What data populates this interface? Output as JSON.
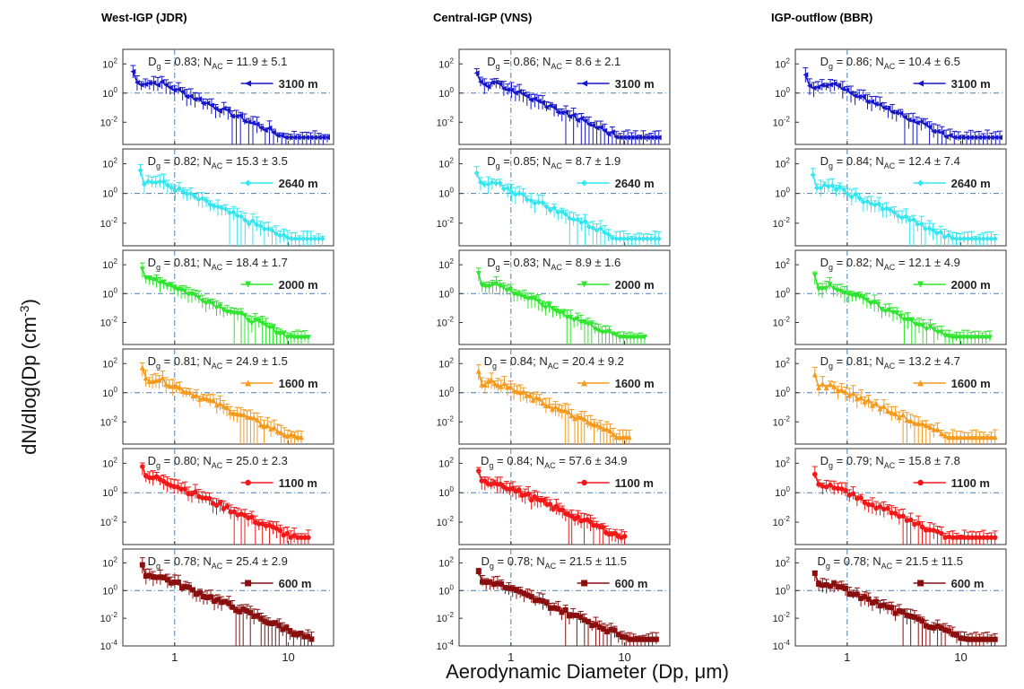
{
  "chart_data": {
    "type": "scatter",
    "layout": "grid 6 rows x 3 columns of log-log size distribution panels",
    "columns": [
      {
        "title": "West-IGP (JDR)",
        "xlim": [
          0.35,
          25
        ],
        "xticks": [
          "1",
          "10"
        ],
        "xtick_values": [
          1,
          10
        ]
      },
      {
        "title": "Central-IGP (VNS)",
        "xlim": [
          0.35,
          25
        ],
        "xticks": [
          "1",
          "10"
        ],
        "xtick_values": [
          1,
          10
        ]
      },
      {
        "title": "IGP-outflow (BBR)",
        "xlim": [
          0.35,
          25
        ],
        "xticks": [
          "1",
          "10"
        ],
        "xtick_values": [
          1,
          10
        ]
      }
    ],
    "rows": [
      {
        "altitude": "3100 m",
        "color": "#1616c8",
        "marker": "triangle-left"
      },
      {
        "altitude": "2640 m",
        "color": "#33e6f0",
        "marker": "diamond"
      },
      {
        "altitude": "2000 m",
        "color": "#2ee62e",
        "marker": "triangle-down"
      },
      {
        "altitude": "1600 m",
        "color": "#f59a1e",
        "marker": "triangle-up"
      },
      {
        "altitude": "1100 m",
        "color": "#f01818",
        "marker": "circle"
      },
      {
        "altitude": "600 m",
        "color": "#8b0e0e",
        "marker": "square"
      }
    ],
    "ylim_upper_rows": [
      0.0003,
      1000
    ],
    "ylim_bottom_row": [
      0.0001,
      1000
    ],
    "yticks_upper": [
      {
        "base": "10",
        "exp": "2"
      },
      {
        "base": "10",
        "exp": "0"
      },
      {
        "base": "10",
        "exp": "-2"
      }
    ],
    "yticks_bottom": [
      {
        "base": "10",
        "exp": "2"
      },
      {
        "base": "10",
        "exp": "0"
      },
      {
        "base": "10",
        "exp": "-2"
      },
      {
        "base": "10",
        "exp": "-4"
      }
    ],
    "reference_lines": {
      "x": 1,
      "y": 1
    },
    "panels": [
      [
        {
          "dg_text": "0.83",
          "nac_text": "11.9 ± 5.1",
          "peak": 5,
          "x_start": 0.43,
          "x_end": 22,
          "dg": 0.83
        },
        {
          "dg_text": "0.82",
          "nac_text": "15.3 ± 3.5",
          "peak": 6,
          "x_start": 0.5,
          "x_end": 20,
          "dg": 0.82
        },
        {
          "dg_text": "0.81",
          "nac_text": "18.4 ± 1.7",
          "peak": 8,
          "x_start": 0.52,
          "x_end": 15,
          "dg": 0.81
        },
        {
          "dg_text": "0.81",
          "nac_text": "24.9 ± 1.5",
          "peak": 9,
          "x_start": 0.52,
          "x_end": 13,
          "dg": 0.81
        },
        {
          "dg_text": "0.80",
          "nac_text": "25.0 ± 2.3",
          "peak": 10,
          "x_start": 0.52,
          "x_end": 15,
          "dg": 0.8
        },
        {
          "dg_text": "0.78",
          "nac_text": "25.4 ± 2.9",
          "peak": 12,
          "x_start": 0.52,
          "x_end": 16,
          "dg": 0.78
        }
      ],
      [
        {
          "dg_text": "0.86",
          "nac_text": "8.6 ± 2.1",
          "peak": 4,
          "x_start": 0.5,
          "x_end": 20,
          "dg": 0.86
        },
        {
          "dg_text": "0.85",
          "nac_text": "8.7 ± 1.9",
          "peak": 4,
          "x_start": 0.5,
          "x_end": 20,
          "dg": 0.85
        },
        {
          "dg_text": "0.83",
          "nac_text": "8.9 ± 1.6",
          "peak": 4,
          "x_start": 0.52,
          "x_end": 15,
          "dg": 0.83
        },
        {
          "dg_text": "0.84",
          "nac_text": "20.4 ± 9.2",
          "peak": 5,
          "x_start": 0.52,
          "x_end": 11,
          "dg": 0.84
        },
        {
          "dg_text": "0.84",
          "nac_text": "57.6 ± 34.9",
          "peak": 5,
          "x_start": 0.52,
          "x_end": 10,
          "dg": 0.84
        },
        {
          "dg_text": "0.78",
          "nac_text": "21.5 ± 11.5",
          "peak": 4,
          "x_start": 0.52,
          "x_end": 19,
          "dg": 0.78
        }
      ],
      [
        {
          "dg_text": "0.86",
          "nac_text": "10.4 ± 6.5",
          "peak": 3,
          "x_start": 0.43,
          "x_end": 22,
          "dg": 0.86
        },
        {
          "dg_text": "0.84",
          "nac_text": "12.4 ± 7.4",
          "peak": 3,
          "x_start": 0.5,
          "x_end": 20,
          "dg": 0.84
        },
        {
          "dg_text": "0.82",
          "nac_text": "12.1 ± 4.9",
          "peak": 3,
          "x_start": 0.52,
          "x_end": 18,
          "dg": 0.82
        },
        {
          "dg_text": "0.81",
          "nac_text": "13.2 ± 4.7",
          "peak": 3,
          "x_start": 0.52,
          "x_end": 20,
          "dg": 0.81
        },
        {
          "dg_text": "0.79",
          "nac_text": "15.8 ± 7.8",
          "peak": 3,
          "x_start": 0.52,
          "x_end": 20,
          "dg": 0.79
        },
        {
          "dg_text": "0.78",
          "nac_text": "21.5 ± 11.5",
          "peak": 3,
          "x_start": 0.52,
          "x_end": 20,
          "dg": 0.78
        }
      ]
    ],
    "xlabel": "Aerodynamic Diameter (Dp, μm)",
    "ylabel_main": "dN/dlog(Dp (cm",
    "ylabel_exp": "-3",
    "ylabel_close": ")",
    "dg_prefix": "D",
    "dg_subscript": "g",
    "nac_prefix": "N",
    "nac_subscript": "AC"
  }
}
